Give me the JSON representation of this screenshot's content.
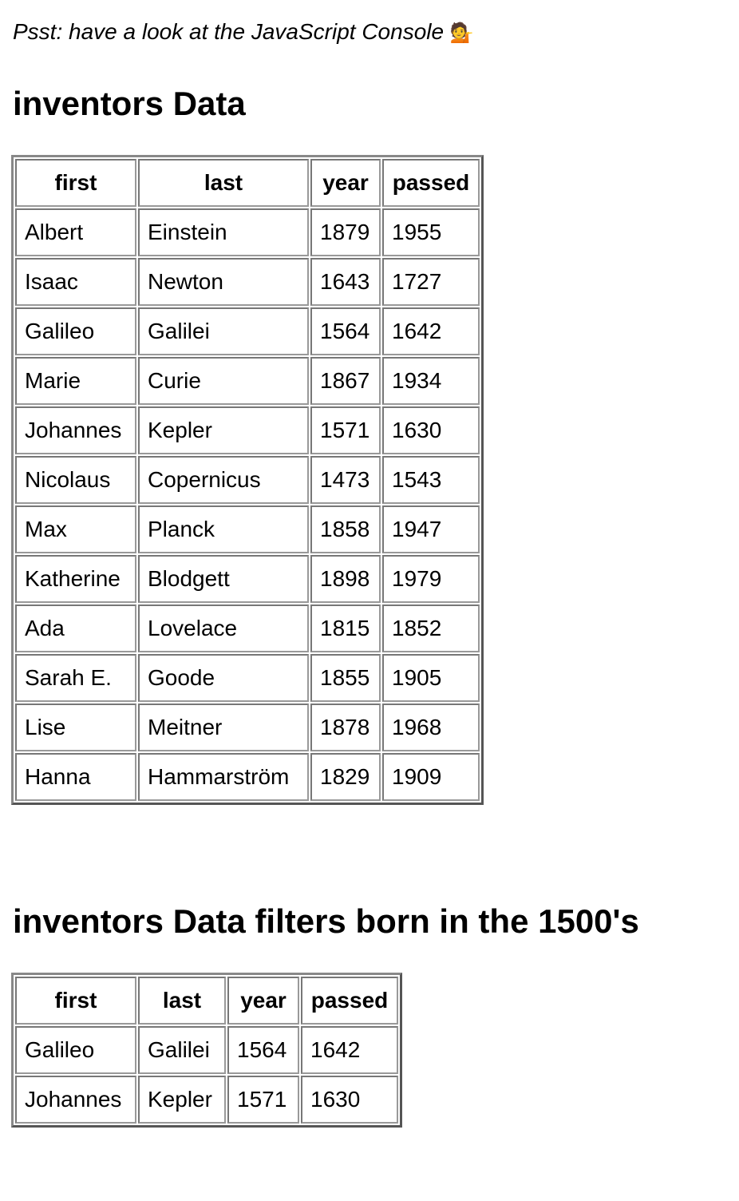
{
  "intro": {
    "text": "Psst: have a look at the JavaScript Console",
    "emoji": "💁"
  },
  "sections": [
    {
      "title": "inventors Data",
      "columns": [
        "first",
        "last",
        "year",
        "passed"
      ],
      "rows": [
        [
          "Albert",
          "Einstein",
          "1879",
          "1955"
        ],
        [
          "Isaac",
          "Newton",
          "1643",
          "1727"
        ],
        [
          "Galileo",
          "Galilei",
          "1564",
          "1642"
        ],
        [
          "Marie",
          "Curie",
          "1867",
          "1934"
        ],
        [
          "Johannes",
          "Kepler",
          "1571",
          "1630"
        ],
        [
          "Nicolaus",
          "Copernicus",
          "1473",
          "1543"
        ],
        [
          "Max",
          "Planck",
          "1858",
          "1947"
        ],
        [
          "Katherine",
          "Blodgett",
          "1898",
          "1979"
        ],
        [
          "Ada",
          "Lovelace",
          "1815",
          "1852"
        ],
        [
          "Sarah E.",
          "Goode",
          "1855",
          "1905"
        ],
        [
          "Lise",
          "Meitner",
          "1878",
          "1968"
        ],
        [
          "Hanna",
          "Hammarström",
          "1829",
          "1909"
        ]
      ]
    },
    {
      "title": "inventors Data filters born in the 1500's",
      "columns": [
        "first",
        "last",
        "year",
        "passed"
      ],
      "rows": [
        [
          "Galileo",
          "Galilei",
          "1564",
          "1642"
        ],
        [
          "Johannes",
          "Kepler",
          "1571",
          "1630"
        ]
      ]
    }
  ]
}
